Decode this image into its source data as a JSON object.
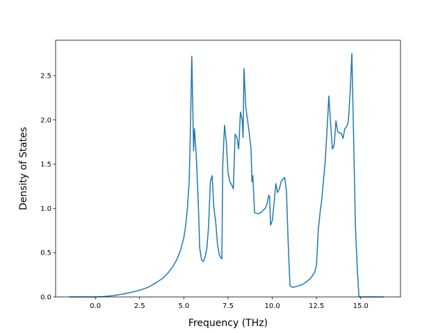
{
  "chart_data": {
    "type": "line",
    "title": "",
    "xlabel": "Frequency (THz)",
    "ylabel": "Density of States",
    "xlim": [
      -2.25,
      17.25
    ],
    "ylim": [
      0.0,
      2.9
    ],
    "grid": false,
    "legend": "none",
    "line_color": "#1f77b4",
    "x_ticks": [
      0.0,
      2.5,
      5.0,
      7.5,
      10.0,
      12.5,
      15.0
    ],
    "x_tick_labels": [
      "0.0",
      "2.5",
      "5.0",
      "7.5",
      "10.0",
      "12.5",
      "15.0"
    ],
    "y_ticks": [
      0.0,
      0.5,
      1.0,
      1.5,
      2.0,
      2.5
    ],
    "y_tick_labels": [
      "0.0",
      "0.5",
      "1.0",
      "1.5",
      "2.0",
      "2.5"
    ],
    "series": [
      {
        "x": [
          -1.5,
          -1.0,
          0.0,
          0.5,
          1.0,
          1.5,
          2.0,
          2.5,
          3.0,
          3.5,
          3.8,
          4.1,
          4.4,
          4.6,
          4.8,
          5.0,
          5.1,
          5.2,
          5.3,
          5.35,
          5.4,
          5.45,
          5.5,
          5.55,
          5.6,
          5.7,
          5.8,
          5.9,
          6.0,
          6.1,
          6.2,
          6.3,
          6.4,
          6.5,
          6.6,
          6.7,
          6.8,
          6.9,
          7.0,
          7.1,
          7.15,
          7.2,
          7.3,
          7.4,
          7.5,
          7.6,
          7.7,
          7.8,
          7.9,
          8.0,
          8.1,
          8.2,
          8.3,
          8.35,
          8.4,
          8.5,
          8.6,
          8.7,
          8.8,
          8.85,
          8.9,
          9.0,
          9.2,
          9.4,
          9.6,
          9.7,
          9.8,
          9.85,
          9.9,
          10.0,
          10.1,
          10.2,
          10.3,
          10.4,
          10.5,
          10.6,
          10.7,
          10.8,
          10.9,
          11.0,
          11.1,
          11.2,
          11.4,
          11.7,
          12.0,
          12.2,
          12.4,
          12.5,
          12.6,
          12.7,
          12.8,
          13.0,
          13.1,
          13.2,
          13.3,
          13.4,
          13.5,
          13.6,
          13.7,
          13.8,
          13.9,
          14.0,
          14.1,
          14.2,
          14.3,
          14.4,
          14.5,
          14.6,
          14.7,
          14.8,
          14.9,
          15.0,
          16.3
        ],
        "y": [
          0.0,
          0.0,
          0.0,
          0.005,
          0.015,
          0.03,
          0.05,
          0.075,
          0.11,
          0.17,
          0.21,
          0.27,
          0.35,
          0.42,
          0.52,
          0.67,
          0.8,
          1.0,
          1.3,
          1.7,
          2.2,
          2.72,
          2.2,
          1.65,
          1.9,
          1.6,
          1.15,
          0.55,
          0.42,
          0.4,
          0.45,
          0.55,
          0.8,
          1.3,
          1.37,
          1.0,
          0.85,
          0.6,
          0.48,
          0.44,
          0.43,
          1.5,
          1.94,
          1.75,
          1.4,
          1.3,
          1.27,
          1.22,
          1.84,
          1.8,
          1.67,
          2.09,
          2.0,
          1.8,
          2.58,
          2.15,
          2.0,
          1.85,
          1.67,
          1.3,
          1.37,
          0.95,
          0.94,
          0.96,
          1.0,
          1.05,
          1.15,
          1.13,
          0.81,
          0.86,
          1.05,
          1.28,
          1.18,
          1.22,
          1.3,
          1.33,
          1.35,
          1.2,
          0.61,
          0.13,
          0.11,
          0.11,
          0.12,
          0.14,
          0.18,
          0.22,
          0.28,
          0.36,
          0.75,
          0.95,
          1.1,
          1.55,
          1.9,
          2.27,
          1.95,
          1.67,
          1.72,
          1.99,
          1.87,
          1.85,
          1.85,
          1.79,
          1.9,
          1.92,
          1.98,
          2.3,
          2.75,
          1.8,
          0.8,
          0.35,
          0.0,
          0.0,
          0.0
        ]
      }
    ]
  }
}
